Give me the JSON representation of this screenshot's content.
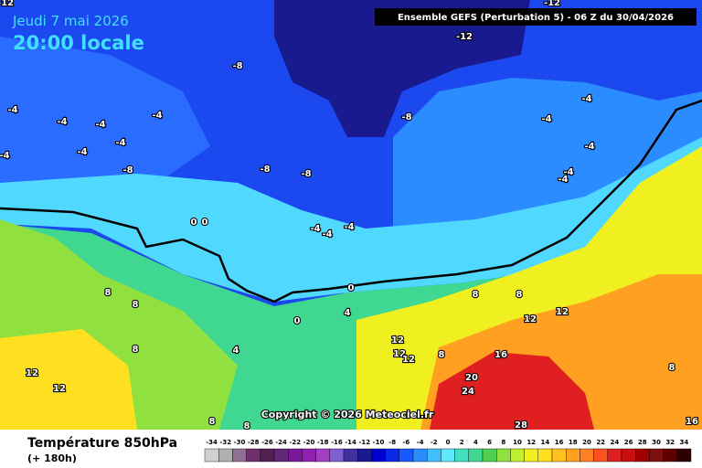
{
  "header": {
    "date": "Jeudi 7 mai 2026",
    "time": "20:00 locale",
    "run": "Ensemble GEFS  (Perturbation 5)  -  06 Z du 30/04/2026"
  },
  "map": {
    "contour_labels": [
      "-12",
      "-12",
      "-12",
      "-8",
      "-4",
      "-4",
      "-4",
      "-4",
      "-4",
      "-4",
      "-4",
      "-8",
      "-8",
      "-8",
      "-8",
      "-4",
      "-4",
      "-4",
      "-4",
      "-4",
      "-4",
      "-4",
      "-4",
      "0",
      "0",
      "0",
      "0",
      "4",
      "8",
      "8",
      "8",
      "8",
      "12",
      "12",
      "12",
      "12",
      "12",
      "8",
      "16",
      "20",
      "24",
      "28",
      "12",
      "12",
      "8",
      "4",
      "8",
      "8",
      "8",
      "16"
    ],
    "copyright": "Copyright © 2026 Meteociel.fr"
  },
  "footer": {
    "title": "Température 850hPa",
    "lead": "(+ 180h)"
  },
  "scale": {
    "labels": [
      -34,
      -32,
      -30,
      -28,
      -26,
      -24,
      -22,
      -20,
      -18,
      -16,
      -14,
      -12,
      -10,
      -8,
      -6,
      -4,
      -2,
      0,
      2,
      4,
      6,
      8,
      10,
      12,
      14,
      16,
      18,
      20,
      22,
      24,
      26,
      28,
      30,
      32,
      34
    ],
    "colors": [
      "#d0d0d0",
      "#b0b0b0",
      "#907090",
      "#703070",
      "#502050",
      "#602878",
      "#7a1a9a",
      "#9020b0",
      "#a040c0",
      "#8060d0",
      "#4030a0",
      "#1a1a90",
      "#0000d0",
      "#0a28e6",
      "#1858ff",
      "#2a8cff",
      "#40c0ff",
      "#60e8ff",
      "#40e0c0",
      "#40d890",
      "#50d050",
      "#90e040",
      "#c0f030",
      "#f0f020",
      "#ffe020",
      "#ffc020",
      "#ffa020",
      "#ff8020",
      "#ff5020",
      "#e02020",
      "#c81010",
      "#a00000",
      "#801010",
      "#600000",
      "#300000"
    ]
  }
}
